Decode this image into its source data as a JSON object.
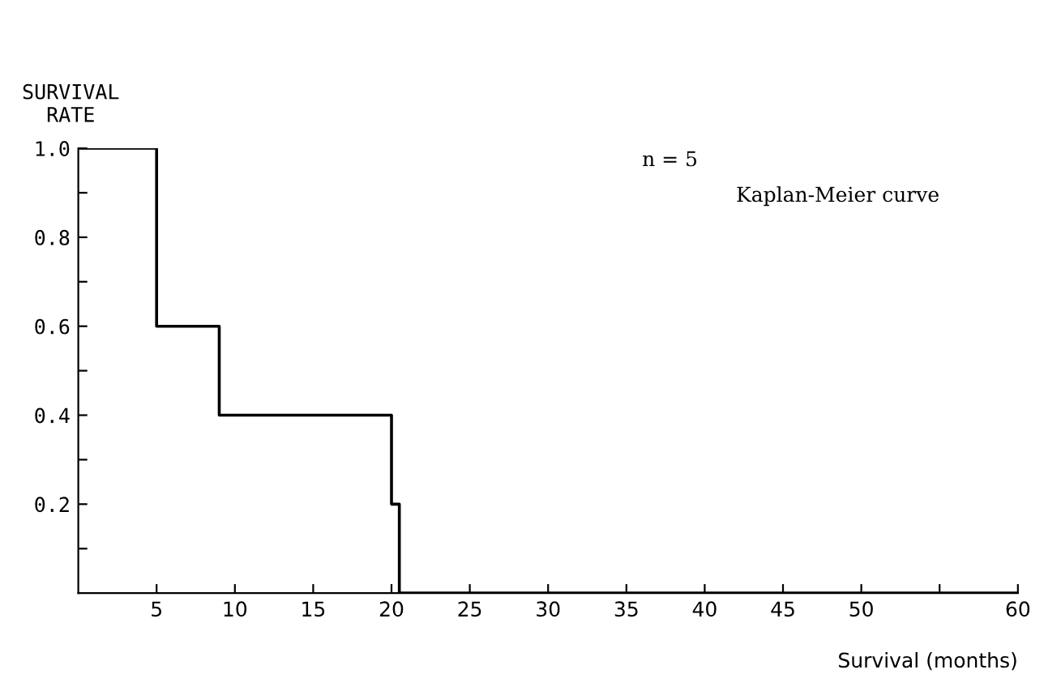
{
  "chart_data": {
    "type": "step",
    "ylabel": "SURVIVAL\nRATE",
    "xlabel": "Survival (months)",
    "annotations": [
      "n = 5",
      "Kaplan-Meier curve"
    ],
    "x": [
      0,
      5,
      9,
      20,
      20.5,
      60
    ],
    "series": [
      {
        "color": "#000000",
        "values": [
          1.0,
          0.6,
          0.4,
          0.2,
          0,
          0
        ]
      }
    ],
    "xlim": [
      0,
      60
    ],
    "ylim": [
      0,
      1.0
    ],
    "xticks": [
      5,
      10,
      15,
      20,
      25,
      30,
      35,
      40,
      45,
      50,
      {
        "value": 55,
        "label": null
      },
      60
    ],
    "yticks": [
      {
        "value": 0.1,
        "label": null
      },
      0.2,
      {
        "value": 0.3,
        "label": null
      },
      0.4,
      {
        "value": 0.5,
        "label": null
      },
      0.6,
      {
        "value": 0.7,
        "label": null
      },
      0.8,
      {
        "value": 0.9,
        "label": null
      },
      {
        "value": 1,
        "label": "1.0"
      }
    ],
    "grid": false,
    "legend": false,
    "marker": "none",
    "line_style": "solid"
  }
}
